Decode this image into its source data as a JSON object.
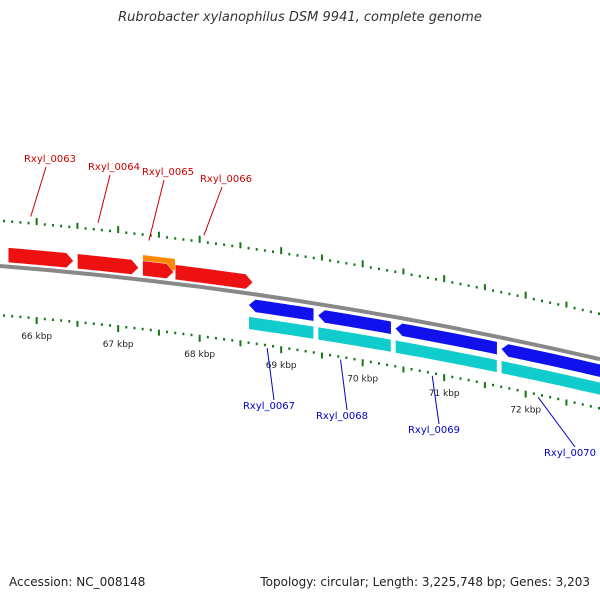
{
  "title": "Rubrobacter xylanophilus DSM 9941, complete genome",
  "footer": {
    "accession": "Accession: NC_008148",
    "topology": "Topology: circular; Length: 3,225,748 bp; Genes: 3,203"
  },
  "colors": {
    "forward_gene": "#ee1111",
    "forward_gene_alt": "#ff8800",
    "reverse_gene": "#1111ee",
    "reverse_cds": "#11cccc",
    "backbone": "#888888",
    "tick": "#117711",
    "forward_label": "#cc0000",
    "reverse_label": "#0000cc"
  },
  "chart_data": {
    "type": "genome-map",
    "kbp_axis": {
      "labels": [
        "66 kbp",
        "67 kbp",
        "68 kbp",
        "69 kbp",
        "70 kbp",
        "71 kbp",
        "72 kbp"
      ],
      "values": [
        66,
        67,
        68,
        69,
        70,
        71,
        72
      ]
    },
    "forward_genes": [
      {
        "name": "Rxyl_0063",
        "start_kbp": 65.65,
        "end_kbp": 66.45,
        "color": "#ee1111"
      },
      {
        "name": "Rxyl_0064",
        "start_kbp": 66.5,
        "end_kbp": 67.25,
        "color": "#ee1111"
      },
      {
        "name": "Rxyl_0065",
        "start_kbp": 67.3,
        "end_kbp": 67.7,
        "color": "#ff8800",
        "lane": 2
      },
      {
        "name": "",
        "start_kbp": 67.3,
        "end_kbp": 67.68,
        "color": "#ee1111"
      },
      {
        "name": "Rxyl_0066",
        "start_kbp": 67.7,
        "end_kbp": 68.65,
        "color": "#ee1111"
      }
    ],
    "reverse_genes": [
      {
        "name": "Rxyl_0067",
        "start_kbp": 68.6,
        "end_kbp": 69.4
      },
      {
        "name": "Rxyl_0068",
        "start_kbp": 69.45,
        "end_kbp": 70.35
      },
      {
        "name": "Rxyl_0069",
        "start_kbp": 70.4,
        "end_kbp": 71.65
      },
      {
        "name": "Rxyl_0070",
        "start_kbp": 71.7,
        "end_kbp": 72.95
      }
    ]
  }
}
